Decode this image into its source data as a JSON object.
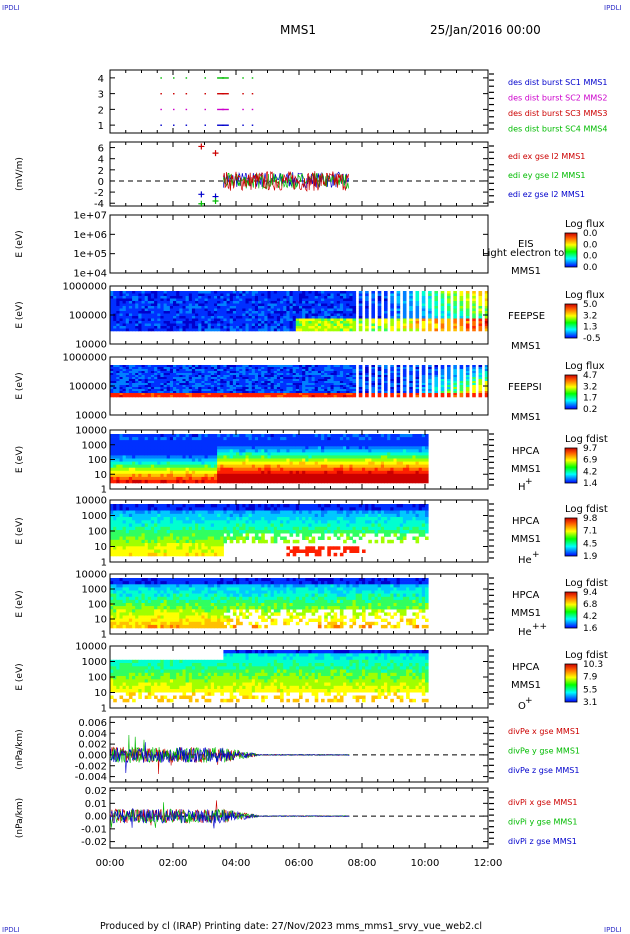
{
  "corner_labels": [
    "IPDLI",
    "IPDLI",
    "IPDLI",
    "IPDLI"
  ],
  "header": {
    "spacecraft": "MMS1",
    "date": "25/Jan/2016 00:00"
  },
  "footer": "Produced by cl (IRAP)   Printing date: 27/Nov/2023   mms_mms1_srvy_vue_web2.cl",
  "colors": {
    "mms1": "#0000cc",
    "mms2": "#cc00cc",
    "mms3": "#cc0000",
    "mms4": "#00bb00",
    "x": "#cc0000",
    "y": "#00bb00",
    "z": "#0000cc"
  },
  "chart_data": [
    {
      "type": "scatter",
      "panel": "burst",
      "xlim": [
        "00:00",
        "12:00"
      ],
      "ylim": [
        0.5,
        4.5
      ],
      "yticks": [
        "1",
        "2",
        "3",
        "4"
      ],
      "legend": [
        "des dist burst SC1 MMS1",
        "des dist burst SC2 MMS2",
        "des dist burst SC3 MMS3",
        "des dist burst SC4 MMS4"
      ],
      "legend_colors": [
        "#0000cc",
        "#cc00cc",
        "#cc0000",
        "#00bb00"
      ],
      "series": [
        {
          "level": 1,
          "color": "#0000cc",
          "x_hours": [
            1.6,
            2.0,
            2.4,
            3.0,
            3.4,
            3.55,
            4.2,
            4.5
          ]
        },
        {
          "level": 2,
          "color": "#cc00cc",
          "x_hours": [
            1.6,
            2.0,
            2.4,
            3.0,
            3.4,
            3.55,
            4.2,
            4.5
          ]
        },
        {
          "level": 3,
          "color": "#cc0000",
          "x_hours": [
            1.6,
            2.0,
            2.4,
            3.0,
            3.4,
            3.55,
            4.2,
            4.5
          ]
        },
        {
          "level": 4,
          "color": "#00bb00",
          "x_hours": [
            1.6,
            2.0,
            2.4,
            3.0,
            3.4,
            3.55,
            4.2,
            4.5
          ]
        }
      ]
    },
    {
      "type": "line",
      "panel": "edi",
      "ylabel": "(mV/m)",
      "ylim": [
        -4.5,
        7
      ],
      "yticks": [
        "6",
        "4",
        "2",
        "0",
        "-2",
        "-4"
      ],
      "legend": [
        "edi ex gse l2 MMS1",
        "edi ey gse l2 MMS1",
        "edi ez gse l2 MMS1"
      ],
      "legend_colors": [
        "#cc0000",
        "#00bb00",
        "#0000cc"
      ],
      "time_range_hours": [
        3.6,
        7.6
      ],
      "markers": [
        {
          "x_hours": 2.9,
          "y": 6.2,
          "color": "#cc0000"
        },
        {
          "x_hours": 3.35,
          "y": 5.0,
          "color": "#cc0000"
        },
        {
          "x_hours": 2.9,
          "y": -2.4,
          "color": "#0000cc"
        },
        {
          "x_hours": 3.35,
          "y": -2.8,
          "color": "#0000cc"
        },
        {
          "x_hours": 2.9,
          "y": -4.1,
          "color": "#00bb00"
        },
        {
          "x_hours": 3.35,
          "y": -3.6,
          "color": "#00bb00"
        }
      ]
    },
    {
      "type": "heatmap",
      "panel": "eis",
      "ylabel": "E (eV)",
      "yticks": [
        "1e+07",
        "1e+06",
        "1e+05",
        "1e+04"
      ],
      "labels": [
        "EIS",
        "MMS1"
      ],
      "overlay_text": "Light electron tof",
      "colorbar_title": "Log flux",
      "colorbar_values": [
        "0.0",
        "0.0",
        "0.0",
        "0.0"
      ]
    },
    {
      "type": "heatmap",
      "panel": "feepse",
      "ylabel": "E (eV)",
      "yticks": [
        "1000000",
        "100000",
        "10000"
      ],
      "labels": [
        "FEEPSE",
        "MMS1"
      ],
      "colorbar_title": "Log flux",
      "colorbar_values": [
        "5.0",
        "3.2",
        "1.3",
        "-0.5"
      ],
      "time_range_hours": [
        0.0,
        12.0
      ]
    },
    {
      "type": "heatmap",
      "panel": "feepsi",
      "ylabel": "E (eV)",
      "yticks": [
        "1000000",
        "100000",
        "10000"
      ],
      "labels": [
        "FEEPSI",
        "MMS1"
      ],
      "colorbar_title": "Log flux",
      "colorbar_values": [
        "4.7",
        "3.2",
        "1.7",
        "0.2"
      ],
      "time_range_hours": [
        0.0,
        12.0
      ]
    },
    {
      "type": "heatmap",
      "panel": "hpca_h",
      "ylabel": "E (eV)",
      "yticks": [
        "10000",
        "1000",
        "100",
        "10",
        "1"
      ],
      "labels": [
        "HPCA",
        "MMS1"
      ],
      "species": "H+",
      "colorbar_title": "Log fdist",
      "colorbar_values": [
        "9.7",
        "6.9",
        "4.2",
        "1.4"
      ],
      "time_range_hours": [
        0.0,
        10.0
      ]
    },
    {
      "type": "heatmap",
      "panel": "hpca_he",
      "ylabel": "E (eV)",
      "yticks": [
        "10000",
        "1000",
        "100",
        "10",
        "1"
      ],
      "labels": [
        "HPCA",
        "MMS1"
      ],
      "species": "He+",
      "colorbar_title": "Log fdist",
      "colorbar_values": [
        "9.8",
        "7.1",
        "4.5",
        "1.9"
      ],
      "time_range_hours": [
        0.0,
        10.0
      ]
    },
    {
      "type": "heatmap",
      "panel": "hpca_hepp",
      "ylabel": "E (eV)",
      "yticks": [
        "10000",
        "1000",
        "100",
        "10",
        "1"
      ],
      "labels": [
        "HPCA",
        "MMS1"
      ],
      "species": "He++",
      "colorbar_title": "Log fdist",
      "colorbar_values": [
        "9.4",
        "6.8",
        "4.2",
        "1.6"
      ],
      "time_range_hours": [
        0.0,
        10.0
      ]
    },
    {
      "type": "heatmap",
      "panel": "hpca_o",
      "ylabel": "E (eV)",
      "yticks": [
        "10000",
        "1000",
        "100",
        "10",
        "1"
      ],
      "labels": [
        "HPCA",
        "MMS1"
      ],
      "species": "O+",
      "colorbar_title": "Log fdist",
      "colorbar_values": [
        "10.3",
        "7.9",
        "5.5",
        "3.1"
      ],
      "time_range_hours": [
        0.0,
        10.0
      ]
    },
    {
      "type": "line",
      "panel": "divpe",
      "ylabel": "(nPa/km)",
      "ylim": [
        -0.005,
        0.007
      ],
      "yticks": [
        "0.006",
        "0.004",
        "0.002",
        "0.000",
        "-0.002",
        "-0.004"
      ],
      "legend": [
        "divPe x gse MMS1",
        "divPe y gse MMS1",
        "divPe z gse MMS1"
      ],
      "legend_colors": [
        "#cc0000",
        "#00bb00",
        "#0000cc"
      ],
      "time_range_hours": [
        0.0,
        7.6
      ]
    },
    {
      "type": "line",
      "panel": "divpi",
      "ylabel": "(nPa/km)",
      "ylim": [
        -0.025,
        0.022
      ],
      "yticks": [
        "0.02",
        "0.01",
        "0.00",
        "-0.01",
        "-0.02"
      ],
      "legend": [
        "divPi x gse MMS1",
        "divPi y gse MMS1",
        "divPi z gse MMS1"
      ],
      "legend_colors": [
        "#cc0000",
        "#00bb00",
        "#0000cc"
      ],
      "time_range_hours": [
        0.0,
        7.6
      ]
    }
  ],
  "xaxis": {
    "ticks": [
      "00:00",
      "02:00",
      "04:00",
      "06:00",
      "08:00",
      "10:00",
      "12:00"
    ]
  }
}
